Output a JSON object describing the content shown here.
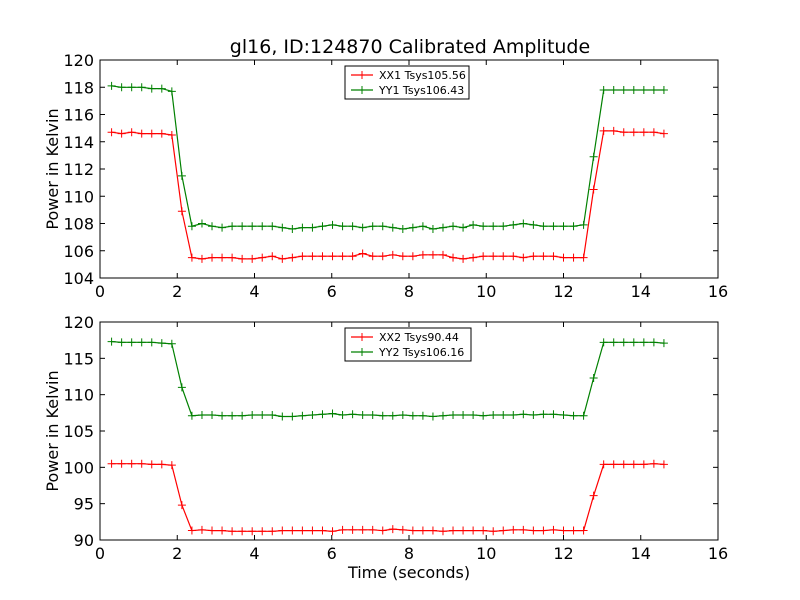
{
  "figure": {
    "title": "gl16, ID:124870 Calibrated Amplitude"
  },
  "chart_data": [
    {
      "type": "line",
      "title": "gl16, ID:124870 Calibrated Amplitude",
      "xlabel": "",
      "ylabel": "Power in Kelvin",
      "xlim": [
        0,
        16
      ],
      "ylim": [
        104,
        120
      ],
      "xticks": [
        "0",
        "2",
        "4",
        "6",
        "8",
        "10",
        "12",
        "14",
        "16"
      ],
      "yticks": [
        "104",
        "106",
        "108",
        "110",
        "112",
        "114",
        "116",
        "118",
        "120"
      ],
      "grid": false,
      "legend": "top-center",
      "x": [
        0.3,
        0.56,
        0.82,
        1.08,
        1.34,
        1.6,
        1.86,
        2.12,
        2.38,
        2.64,
        2.9,
        3.16,
        3.42,
        3.68,
        3.94,
        4.2,
        4.46,
        4.72,
        4.98,
        5.24,
        5.5,
        5.76,
        6.02,
        6.28,
        6.54,
        6.8,
        7.06,
        7.32,
        7.58,
        7.84,
        8.1,
        8.36,
        8.62,
        8.88,
        9.14,
        9.4,
        9.66,
        9.92,
        10.18,
        10.44,
        10.7,
        10.96,
        11.22,
        11.48,
        11.74,
        12.0,
        12.26,
        12.52,
        12.78,
        13.04,
        13.3,
        13.56,
        13.82,
        14.08,
        14.34,
        14.6
      ],
      "series": [
        {
          "name": "XX1 Tsys105.56",
          "color": "#ff0000",
          "values": [
            114.7,
            114.6,
            114.7,
            114.6,
            114.6,
            114.6,
            114.5,
            108.9,
            105.5,
            105.4,
            105.5,
            105.5,
            105.5,
            105.4,
            105.4,
            105.5,
            105.6,
            105.4,
            105.5,
            105.6,
            105.6,
            105.6,
            105.6,
            105.6,
            105.6,
            105.8,
            105.6,
            105.6,
            105.7,
            105.6,
            105.6,
            105.7,
            105.7,
            105.7,
            105.5,
            105.4,
            105.5,
            105.6,
            105.6,
            105.6,
            105.6,
            105.5,
            105.6,
            105.6,
            105.6,
            105.5,
            105.5,
            105.5,
            110.5,
            114.8,
            114.8,
            114.7,
            114.7,
            114.7,
            114.7,
            114.6
          ]
        },
        {
          "name": "YY1 Tsys106.43",
          "color": "#008000",
          "values": [
            118.1,
            118.0,
            118.0,
            118.0,
            117.9,
            117.9,
            117.7,
            111.5,
            107.8,
            108.0,
            107.8,
            107.7,
            107.8,
            107.8,
            107.8,
            107.8,
            107.8,
            107.7,
            107.6,
            107.7,
            107.7,
            107.8,
            107.9,
            107.8,
            107.8,
            107.7,
            107.8,
            107.8,
            107.7,
            107.6,
            107.7,
            107.8,
            107.6,
            107.7,
            107.8,
            107.7,
            107.9,
            107.8,
            107.8,
            107.8,
            107.9,
            108.0,
            107.9,
            107.8,
            107.8,
            107.8,
            107.8,
            107.9,
            112.9,
            117.8,
            117.8,
            117.8,
            117.8,
            117.8,
            117.8,
            117.8
          ]
        }
      ]
    },
    {
      "type": "line",
      "title": "",
      "xlabel": "Time (seconds)",
      "ylabel": "Power in Kelvin",
      "xlim": [
        0,
        16
      ],
      "ylim": [
        90,
        120
      ],
      "xticks": [
        "0",
        "2",
        "4",
        "6",
        "8",
        "10",
        "12",
        "14",
        "16"
      ],
      "yticks": [
        "90",
        "95",
        "100",
        "105",
        "110",
        "115",
        "120"
      ],
      "grid": false,
      "legend": "top-center",
      "x": [
        0.3,
        0.56,
        0.82,
        1.08,
        1.34,
        1.6,
        1.86,
        2.12,
        2.38,
        2.64,
        2.9,
        3.16,
        3.42,
        3.68,
        3.94,
        4.2,
        4.46,
        4.72,
        4.98,
        5.24,
        5.5,
        5.76,
        6.02,
        6.28,
        6.54,
        6.8,
        7.06,
        7.32,
        7.58,
        7.84,
        8.1,
        8.36,
        8.62,
        8.88,
        9.14,
        9.4,
        9.66,
        9.92,
        10.18,
        10.44,
        10.7,
        10.96,
        11.22,
        11.48,
        11.74,
        12.0,
        12.26,
        12.52,
        12.78,
        13.04,
        13.3,
        13.56,
        13.82,
        14.08,
        14.34,
        14.6
      ],
      "series": [
        {
          "name": "XX2 Tsys90.44",
          "color": "#ff0000",
          "values": [
            100.5,
            100.5,
            100.5,
            100.5,
            100.4,
            100.4,
            100.3,
            94.8,
            91.3,
            91.4,
            91.3,
            91.3,
            91.2,
            91.2,
            91.2,
            91.2,
            91.2,
            91.3,
            91.3,
            91.3,
            91.3,
            91.3,
            91.2,
            91.4,
            91.4,
            91.4,
            91.4,
            91.3,
            91.5,
            91.4,
            91.3,
            91.3,
            91.3,
            91.2,
            91.3,
            91.3,
            91.3,
            91.3,
            91.2,
            91.3,
            91.4,
            91.4,
            91.3,
            91.3,
            91.4,
            91.3,
            91.3,
            91.3,
            96.1,
            100.4,
            100.4,
            100.4,
            100.4,
            100.4,
            100.5,
            100.4
          ]
        },
        {
          "name": "YY2 Tsys106.16",
          "color": "#008000",
          "values": [
            117.3,
            117.2,
            117.2,
            117.2,
            117.2,
            117.1,
            117.0,
            111.0,
            107.1,
            107.2,
            107.2,
            107.1,
            107.1,
            107.1,
            107.2,
            107.2,
            107.2,
            107.0,
            107.0,
            107.1,
            107.2,
            107.3,
            107.4,
            107.2,
            107.3,
            107.2,
            107.2,
            107.1,
            107.1,
            107.2,
            107.1,
            107.1,
            107.0,
            107.1,
            107.2,
            107.2,
            107.2,
            107.1,
            107.2,
            107.2,
            107.2,
            107.3,
            107.2,
            107.3,
            107.3,
            107.2,
            107.1,
            107.1,
            112.3,
            117.2,
            117.2,
            117.2,
            117.2,
            117.2,
            117.2,
            117.1
          ]
        }
      ]
    }
  ]
}
